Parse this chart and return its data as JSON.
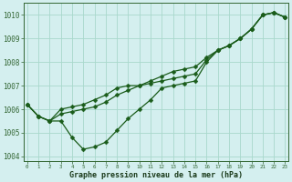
{
  "hours": [
    0,
    1,
    2,
    3,
    4,
    5,
    6,
    7,
    8,
    9,
    10,
    11,
    12,
    13,
    14,
    15,
    16,
    17,
    18,
    19,
    20,
    21,
    22,
    23
  ],
  "y_dip": [
    1006.2,
    1005.7,
    1005.5,
    1005.5,
    1004.8,
    1004.3,
    1004.4,
    1004.6,
    1005.1,
    1005.6,
    1006.0,
    1006.4,
    1006.9,
    1007.0,
    1007.1,
    1007.2,
    1008.0,
    1008.5,
    1008.7,
    1009.0,
    1009.4,
    1010.0,
    1010.1,
    1009.9
  ],
  "y_upper": [
    1006.2,
    1005.7,
    1005.5,
    1006.0,
    1006.1,
    1006.2,
    1006.4,
    1006.6,
    1006.9,
    1007.0,
    1007.0,
    1007.2,
    1007.4,
    1007.6,
    1007.7,
    1007.8,
    1008.2,
    1008.5,
    1008.7,
    1009.0,
    1009.4,
    1010.0,
    1010.1,
    1009.9
  ],
  "y_mid": [
    1006.2,
    1005.7,
    1005.5,
    1005.8,
    1005.9,
    1006.0,
    1006.1,
    1006.3,
    1006.6,
    1006.8,
    1007.0,
    1007.1,
    1007.2,
    1007.3,
    1007.4,
    1007.5,
    1008.1,
    1008.5,
    1008.7,
    1009.0,
    1009.4,
    1010.0,
    1010.1,
    1009.9
  ],
  "line_color": "#1a5c1a",
  "bg_color": "#d4efef",
  "grid_color": "#a8d8cc",
  "ylim": [
    1003.8,
    1010.5
  ],
  "yticks": [
    1004,
    1005,
    1006,
    1007,
    1008,
    1009,
    1010
  ],
  "xlabel": "Graphe pression niveau de la mer (hPa)",
  "marker_size": 2.5,
  "linewidth": 0.9
}
